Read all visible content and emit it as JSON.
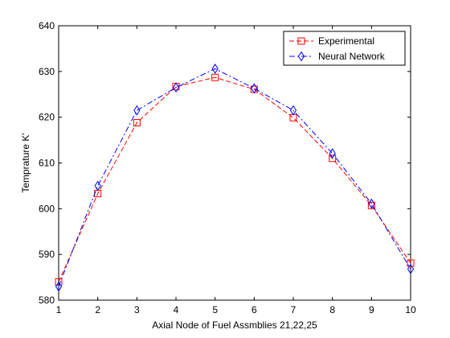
{
  "chart_data": {
    "type": "line",
    "title": "",
    "xlabel": "Axial Node of Fuel Assmblies 21,22,25",
    "ylabel": "Temprature K'",
    "x": [
      1,
      2,
      3,
      4,
      5,
      6,
      7,
      8,
      9,
      10
    ],
    "xlim": [
      1,
      10
    ],
    "ylim": [
      580,
      640
    ],
    "xticks": [
      1,
      2,
      3,
      4,
      5,
      6,
      7,
      8,
      9,
      10
    ],
    "yticks": [
      580,
      590,
      600,
      610,
      620,
      630,
      640
    ],
    "grid": false,
    "legend_position": "top-right",
    "series": [
      {
        "name": "Experimental",
        "color": "#ff0000",
        "marker": "square",
        "line_style": "dashed",
        "values": [
          584,
          603.3,
          618.8,
          626.7,
          628.7,
          626.1,
          619.9,
          611.0,
          600.7,
          588.1
        ]
      },
      {
        "name": "Neural Network",
        "color": "#0000ff",
        "marker": "diamond",
        "line_style": "dash-dot",
        "values": [
          583,
          605,
          621.5,
          626.5,
          630.6,
          626.3,
          621.5,
          612.1,
          601.1,
          586.8
        ]
      }
    ]
  }
}
